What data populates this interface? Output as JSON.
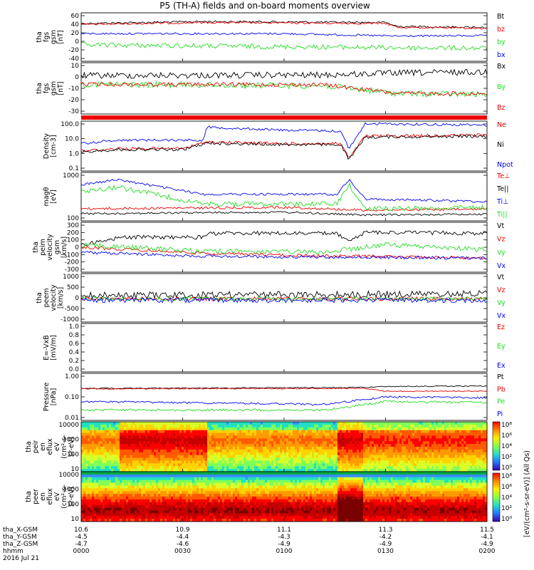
{
  "title": "P5 (TH-A) fields and on-board moments overview",
  "colors": {
    "black": "#000000",
    "red": "#ee0000",
    "green": "#22dd22",
    "blue": "#0000ee",
    "axis": "#000000"
  },
  "panels": [
    {
      "key": "fgs_btot",
      "label": [
        "tha",
        "fgs",
        "gsm",
        "[nT]"
      ],
      "yticks": [
        "60",
        "40",
        "20",
        "0",
        "-20",
        "-40"
      ],
      "legend": [
        {
          "text": "Bt",
          "color": "#000000"
        },
        {
          "text": "bz",
          "color": "#ee0000"
        },
        {
          "text": "by",
          "color": "#22dd22"
        },
        {
          "text": "bx",
          "color": "#0000ee"
        }
      ]
    },
    {
      "key": "fgs_bxyz",
      "label": [
        "tha",
        "fgs",
        "gsm",
        "[nT]"
      ],
      "yticks": [
        "10",
        "0",
        "-10",
        "-20",
        "-30"
      ],
      "legend": [
        {
          "text": "Bx",
          "color": "#000000"
        },
        {
          "text": "By",
          "color": "#22dd22"
        },
        {
          "text": "Bz",
          "color": "#ee0000"
        }
      ]
    },
    {
      "key": "density",
      "label": [
        "Density",
        "[cm-3]"
      ],
      "yticks": [
        "100.0",
        "10.0",
        "1.0",
        "0.1"
      ],
      "legend": [
        {
          "text": "Ne",
          "color": "#ee0000"
        },
        {
          "text": "Ni",
          "color": "#000000"
        },
        {
          "text": "Npot",
          "color": "#0000ee"
        }
      ]
    },
    {
      "key": "temperature",
      "label": [
        "magθ",
        "[eV]"
      ],
      "yticks": [
        "1000",
        "100"
      ],
      "legend": [
        {
          "text": "Te⊥",
          "color": "#ee0000"
        },
        {
          "text": "Te||",
          "color": "#000000"
        },
        {
          "text": "Ti⊥",
          "color": "#0000ee"
        },
        {
          "text": "Ti||",
          "color": "#22dd22"
        }
      ]
    },
    {
      "key": "peim_velocity",
      "label": [
        "tha",
        "peim",
        "velocity",
        "gsm",
        "[km/s]"
      ],
      "yticks": [
        "300",
        "200",
        "100",
        "0",
        "-100",
        "-200",
        "-300"
      ],
      "legend": [
        {
          "text": "Vt",
          "color": "#000000"
        },
        {
          "text": "Vz",
          "color": "#ee0000"
        },
        {
          "text": "Vy",
          "color": "#22dd22"
        },
        {
          "text": "Vx",
          "color": "#0000ee"
        }
      ]
    },
    {
      "key": "peem_velocity",
      "label": [
        "tha",
        "peem",
        "velocity",
        "[km/s]"
      ],
      "yticks": [
        "1000",
        "500",
        "0",
        "-500",
        "-1000"
      ],
      "legend": [
        {
          "text": "Vt",
          "color": "#000000"
        },
        {
          "text": "Vz",
          "color": "#ee0000"
        },
        {
          "text": "Vy",
          "color": "#22dd22"
        },
        {
          "text": "Vx",
          "color": "#0000ee"
        }
      ]
    },
    {
      "key": "efield",
      "label": [
        "E=-VxB",
        "[mV/m]"
      ],
      "yticks": [
        "1.0",
        "0.8",
        "0.6",
        "0.4",
        "0.2",
        "0.0"
      ],
      "legend": [
        {
          "text": "Ez",
          "color": "#ee0000"
        },
        {
          "text": "Ey",
          "color": "#22dd22"
        },
        {
          "text": "Ex",
          "color": "#0000ee"
        }
      ]
    },
    {
      "key": "pressure",
      "label": [
        "Pressure",
        "[nPa]"
      ],
      "yticks": [
        "1.00",
        "0.10",
        "0.01"
      ],
      "legend": [
        {
          "text": "Pt",
          "color": "#000000"
        },
        {
          "text": "Pb",
          "color": "#ee0000"
        },
        {
          "text": "Pe",
          "color": "#22dd22"
        },
        {
          "text": "Pi",
          "color": "#0000ee"
        }
      ]
    },
    {
      "key": "peir_spec",
      "label": [
        "tha",
        "peir",
        "en",
        "eflux",
        "eV",
        "(cm²-s-",
        "sr-eV)"
      ],
      "yticks": [
        "10000",
        "1000",
        "100",
        "10"
      ],
      "legend": []
    },
    {
      "key": "peer_spec",
      "label": [
        "tha",
        "peer",
        "en",
        "eflux",
        "eV",
        "(cm²-s-",
        "sr-eV)"
      ],
      "yticks": [
        "10000",
        "1000",
        "100",
        "10"
      ],
      "legend": []
    }
  ],
  "colorbar": {
    "ticks": [
      "10⁸",
      "10⁶",
      "10⁴",
      "10²",
      "10⁰"
    ],
    "label": "[eV/(cm²-s-sr-eV)] (All Qs)"
  },
  "xaxis": {
    "rows": [
      {
        "label": "tha_X-GSM",
        "values": [
          "10.6",
          "10.9",
          "11.1",
          "11.3",
          "11.5"
        ]
      },
      {
        "label": "tha_Y-GSM",
        "values": [
          "-4.5",
          "-4.4",
          "-4.3",
          "-4.2",
          "-4.1"
        ]
      },
      {
        "label": "tha_Z-GSM",
        "values": [
          "-4.7",
          "-4.6",
          "-4.9",
          "-4.9",
          "-4.9"
        ]
      },
      {
        "label": "hhmm",
        "values": [
          "0000",
          "0030",
          "0100",
          "0130",
          "0200"
        ]
      }
    ],
    "date": "2016 Jul 21"
  },
  "chart_data": [
    {
      "type": "line",
      "title": "P5 (TH-A) fields and on-board moments overview",
      "ylabel": "tha fgs gsm [nT]",
      "ylim": [
        -40,
        60
      ],
      "x": [
        "0000",
        "0030",
        "0100",
        "0130",
        "0200"
      ],
      "series": [
        {
          "name": "Bt",
          "values": [
            48,
            48,
            48,
            47,
            38
          ]
        },
        {
          "name": "bz",
          "values": [
            47,
            47,
            47,
            46,
            37
          ]
        },
        {
          "name": "by",
          "values": [
            13,
            12,
            13,
            12,
            8
          ]
        },
        {
          "name": "bx",
          "values": [
            -3,
            -5,
            -4,
            -5,
            -8
          ]
        }
      ]
    },
    {
      "type": "line",
      "ylabel": "tha fgs gsm [nT]",
      "ylim": [
        -35,
        15
      ],
      "x": [
        "0000",
        "0030",
        "0100",
        "0130",
        "0200"
      ],
      "series": [
        {
          "name": "Bx",
          "values": [
            5,
            5,
            6,
            8,
            8
          ]
        },
        {
          "name": "By",
          "values": [
            -2,
            -5,
            -3,
            -10,
            -12
          ]
        },
        {
          "name": "Bz",
          "values": [
            -2,
            -2,
            -3,
            -8,
            -10
          ]
        }
      ]
    },
    {
      "type": "line",
      "ylabel": "Density [cm-3]",
      "ylim": [
        0.1,
        100
      ],
      "yscale": "log",
      "x": [
        "0000",
        "0030",
        "0100",
        "0130",
        "0200"
      ],
      "series": [
        {
          "name": "Ne",
          "values": [
            2,
            7,
            3,
            15,
            15
          ]
        },
        {
          "name": "Ni",
          "values": [
            2,
            6,
            3,
            14,
            14
          ]
        },
        {
          "name": "Npot",
          "values": [
            3,
            20,
            10,
            80,
            60
          ]
        }
      ]
    },
    {
      "type": "line",
      "ylabel": "magθ [eV]",
      "yscale": "log",
      "x": [
        "0000",
        "0030",
        "0100",
        "0130",
        "0200"
      ],
      "series": [
        {
          "name": "Te⊥",
          "values": [
            120,
            110,
            120,
            90,
            100
          ]
        },
        {
          "name": "Te||",
          "values": [
            80,
            70,
            75,
            60,
            60
          ]
        },
        {
          "name": "Ti⊥",
          "values": [
            2000,
            700,
            800,
            400,
            400
          ]
        },
        {
          "name": "Ti||",
          "values": [
            1500,
            200,
            300,
            150,
            180
          ]
        }
      ]
    },
    {
      "type": "line",
      "ylabel": "tha peim velocity gsm [km/s]",
      "ylim": [
        -300,
        300
      ],
      "x": [
        "0000",
        "0030",
        "0100",
        "0130",
        "0200"
      ],
      "series": [
        {
          "name": "Vt",
          "values": [
            80,
            150,
            160,
            170,
            170
          ]
        },
        {
          "name": "Vz",
          "values": [
            20,
            -60,
            -80,
            -90,
            -100
          ]
        },
        {
          "name": "Vy",
          "values": [
            40,
            -20,
            -30,
            60,
            0
          ]
        },
        {
          "name": "Vx",
          "values": [
            -50,
            -90,
            -90,
            -100,
            -110
          ]
        }
      ]
    },
    {
      "type": "line",
      "ylabel": "tha peem velocity [km/s]",
      "ylim": [
        -1000,
        1000
      ],
      "x": [
        "0000",
        "0030",
        "0100",
        "0130",
        "0200"
      ],
      "series": [
        {
          "name": "Vt",
          "values": [
            150,
            200,
            180,
            180,
            180
          ]
        },
        {
          "name": "Vz",
          "values": [
            0,
            0,
            0,
            0,
            0
          ]
        },
        {
          "name": "Vy",
          "values": [
            0,
            0,
            0,
            0,
            0
          ]
        },
        {
          "name": "Vx",
          "values": [
            -50,
            -60,
            -60,
            -60,
            -60
          ]
        }
      ]
    },
    {
      "type": "line",
      "ylabel": "E=-VxB [mV/m]",
      "ylim": [
        0,
        1
      ],
      "series": [
        {
          "name": "Ez",
          "values": []
        },
        {
          "name": "Ey",
          "values": []
        },
        {
          "name": "Ex",
          "values": []
        }
      ]
    },
    {
      "type": "line",
      "ylabel": "Pressure [nPa]",
      "yscale": "log",
      "ylim": [
        0.01,
        1
      ],
      "x": [
        "0000",
        "0030",
        "0100",
        "0130",
        "0200"
      ],
      "series": [
        {
          "name": "Pt",
          "values": [
            0.95,
            1.0,
            1.0,
            1.05,
            1.1
          ]
        },
        {
          "name": "Pb",
          "values": [
            0.9,
            0.95,
            0.95,
            0.7,
            0.7
          ]
        },
        {
          "name": "Pe",
          "values": [
            0.02,
            0.03,
            0.02,
            0.2,
            0.2
          ]
        },
        {
          "name": "Pi",
          "values": [
            0.2,
            0.15,
            0.12,
            0.3,
            0.3
          ]
        }
      ]
    },
    {
      "type": "heatmap",
      "ylabel": "tha peir en eflux eV (cm²-s- sr-eV)",
      "yscale": "log",
      "ylim": [
        10,
        10000
      ]
    },
    {
      "type": "heatmap",
      "ylabel": "tha peer en eflux eV (cm²-s- sr-eV)",
      "yscale": "log",
      "ylim": [
        10,
        10000
      ]
    }
  ]
}
